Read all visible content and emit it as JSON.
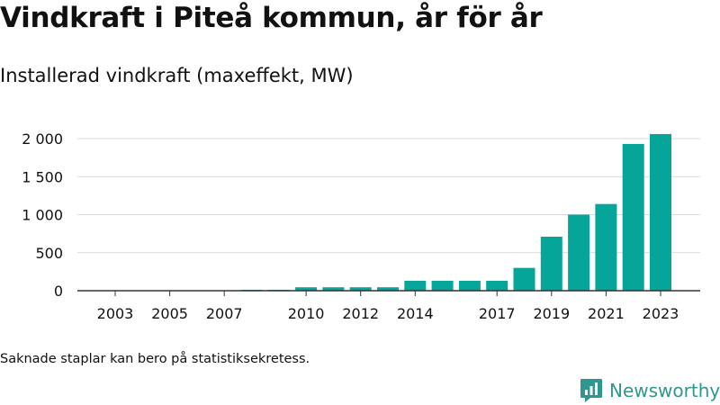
{
  "title": "Vindkraft i Piteå kommun, år för år",
  "subtitle": "Installerad vindkraft (maxeffekt, MW)",
  "footnote": "Saknade staplar kan bero på statistiksekretess.",
  "brand": {
    "name": "Newsworthy",
    "color": "#2f9690",
    "icon": "newsworthy-logo-icon"
  },
  "colors": {
    "bar": "#06a59a",
    "grid": "#d9d9d9",
    "axis": "#333333",
    "text": "#111111"
  },
  "chart_data": {
    "type": "bar",
    "categories": [
      "2003",
      "2004",
      "2005",
      "2006",
      "2007",
      "2008",
      "2009",
      "2010",
      "2011",
      "2012",
      "2013",
      "2014",
      "2015",
      "2016",
      "2017",
      "2018",
      "2019",
      "2020",
      "2021",
      "2022",
      "2023"
    ],
    "values": [
      0,
      0,
      0,
      0,
      0,
      12,
      12,
      45,
      45,
      45,
      45,
      130,
      130,
      130,
      130,
      300,
      710,
      1000,
      1140,
      1930,
      2060
    ],
    "x_tick_labels": [
      "2003",
      "2005",
      "2007",
      "2010",
      "2012",
      "2014",
      "2017",
      "2019",
      "2021",
      "2023"
    ],
    "y_ticks": [
      0,
      500,
      1000,
      1500,
      2000
    ],
    "y_tick_labels": [
      "0",
      "500",
      "1 000",
      "1 500",
      "2 000"
    ],
    "ylim": [
      0,
      2000
    ],
    "xlabel": "",
    "ylabel": "",
    "grid": true,
    "legend": "none"
  }
}
